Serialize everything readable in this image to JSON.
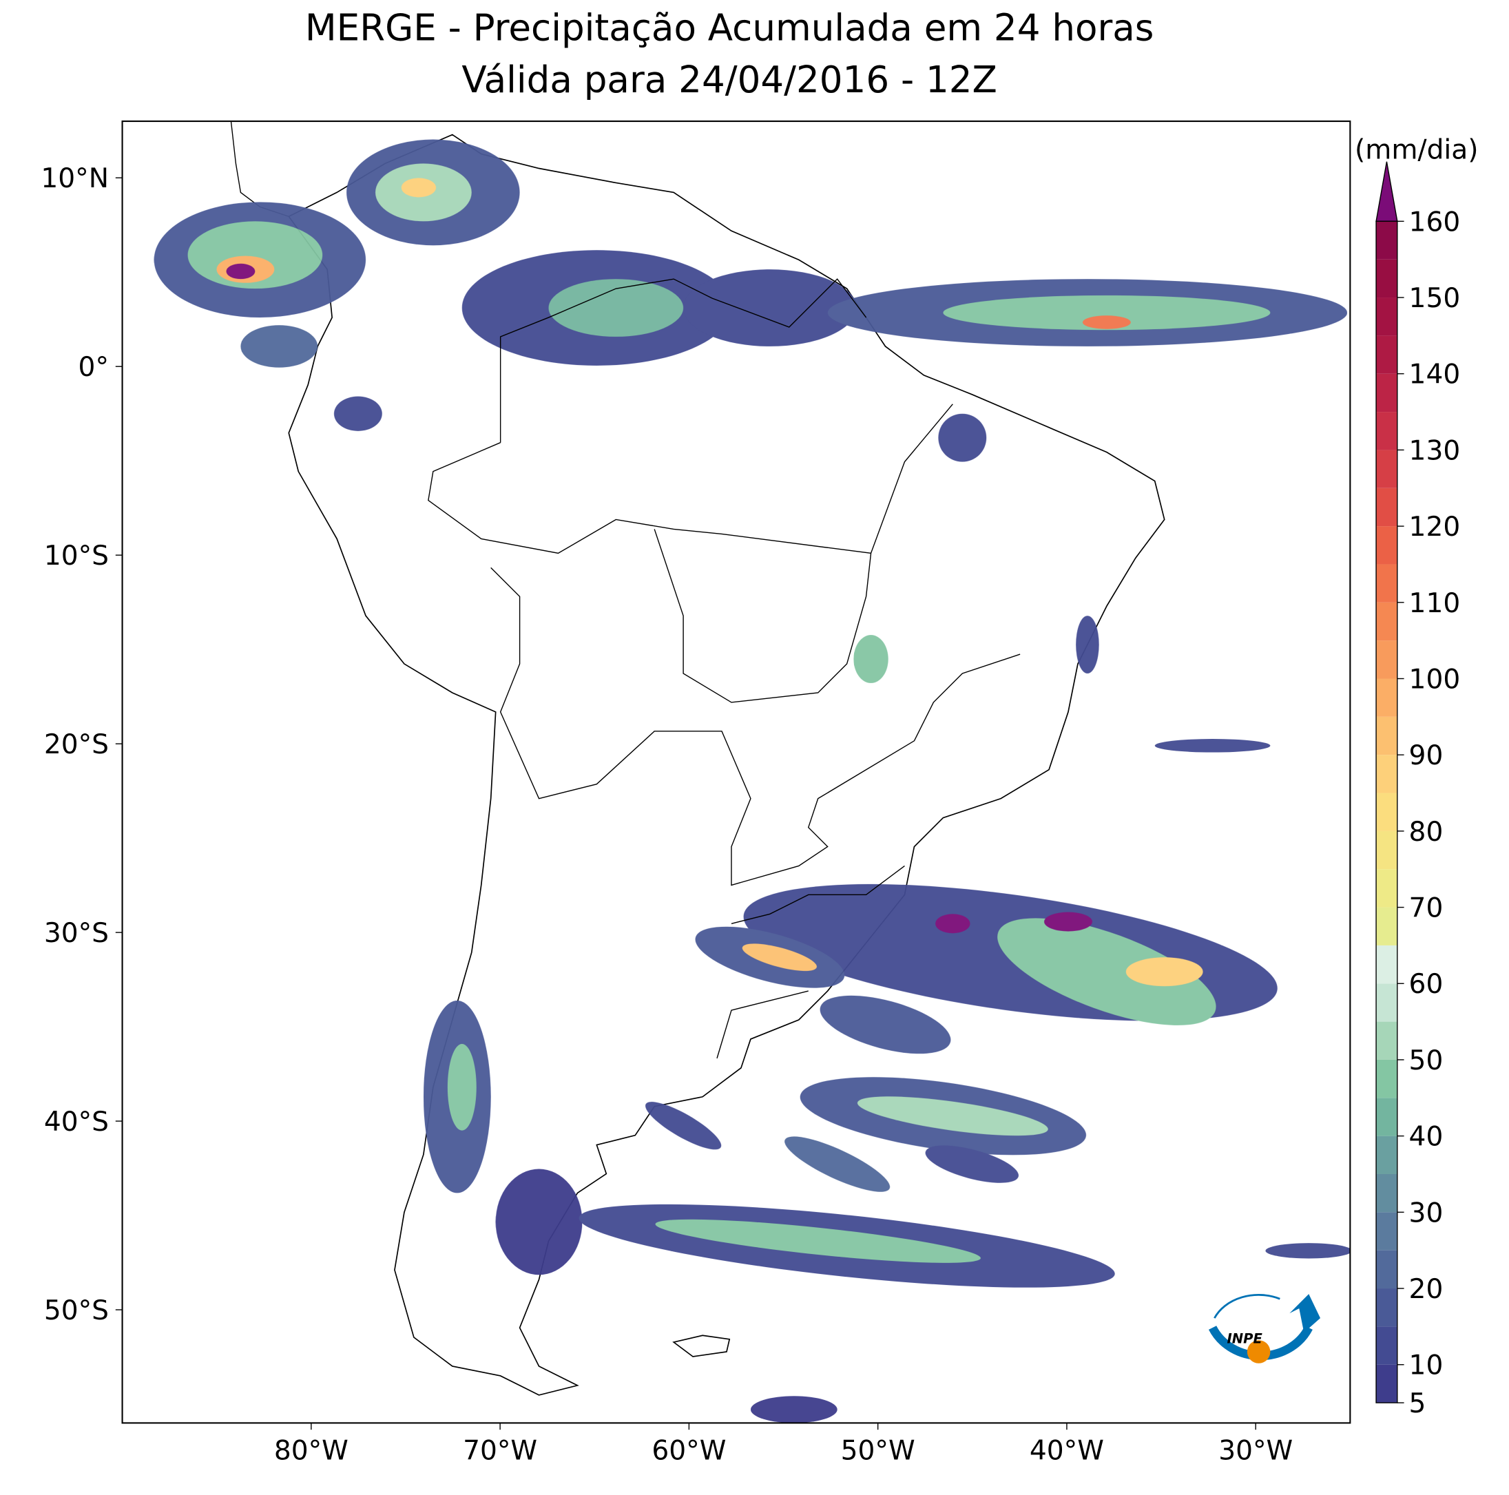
{
  "title": [
    "MERGE - Precipitação Acumulada em 24 horas",
    "Válida para 24/04/2016 - 12Z"
  ],
  "map": {
    "lonlim": [
      -90,
      -25
    ],
    "latlim": [
      -56,
      13
    ],
    "lon_ticks": [
      {
        "value": -80,
        "label": "80°W"
      },
      {
        "value": -70,
        "label": "70°W"
      },
      {
        "value": -60,
        "label": "60°W"
      },
      {
        "value": -50,
        "label": "50°W"
      },
      {
        "value": -40,
        "label": "40°W"
      },
      {
        "value": -30,
        "label": "30°W"
      }
    ],
    "lat_ticks": [
      {
        "value": 10,
        "label": "10°N"
      },
      {
        "value": 0,
        "label": "0°"
      },
      {
        "value": -10,
        "label": "10°S"
      },
      {
        "value": -20,
        "label": "20°S"
      },
      {
        "value": -30,
        "label": "30°S"
      },
      {
        "value": -40,
        "label": "40°S"
      },
      {
        "value": -50,
        "label": "50°S"
      }
    ]
  },
  "colorbar": {
    "label": "(mm/dia)",
    "levels": [
      5,
      10,
      15,
      20,
      25,
      30,
      35,
      40,
      45,
      50,
      55,
      60,
      65,
      70,
      75,
      80,
      85,
      90,
      95,
      100,
      105,
      110,
      115,
      120,
      125,
      130,
      135,
      140,
      145,
      150,
      155,
      160
    ],
    "colors": [
      "#3e3d8c",
      "#434b92",
      "#4a5a97",
      "#526a9b",
      "#5b7b9e",
      "#628d9f",
      "#6aa0a0",
      "#73b59f",
      "#84c6a3",
      "#a6d6b8",
      "#c6e5d4",
      "#dcefe4",
      "#e6ec8f",
      "#eeea87",
      "#f5e482",
      "#fbdd7e",
      "#fdd07a",
      "#fcc070",
      "#fbae66",
      "#f89b5c",
      "#f58852",
      "#f1744b",
      "#eb6146",
      "#e14e45",
      "#d63f46",
      "#c93047",
      "#bc2446",
      "#ae1a44",
      "#a31343",
      "#980e42",
      "#8c0a48"
    ],
    "extend_color": "#7b0c78",
    "ticks": [
      5,
      10,
      20,
      30,
      40,
      50,
      60,
      70,
      80,
      90,
      100,
      110,
      120,
      130,
      140,
      150,
      160
    ]
  },
  "logo": {
    "text": "INPE"
  }
}
